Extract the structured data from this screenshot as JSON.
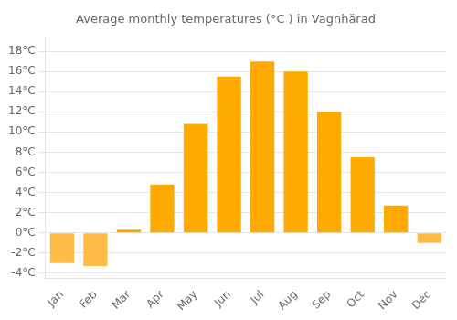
{
  "chart_data": {
    "type": "bar",
    "title": "Average monthly temperatures (°C ) in Vagnhärad",
    "categories": [
      "Jan",
      "Feb",
      "Mar",
      "Apr",
      "May",
      "Jun",
      "Jul",
      "Aug",
      "Sep",
      "Oct",
      "Nov",
      "Dec"
    ],
    "values": [
      -3.0,
      -3.3,
      0.3,
      4.8,
      10.8,
      15.5,
      17.0,
      16.0,
      12.0,
      7.5,
      2.7,
      -1.0
    ],
    "colors": [
      "#FFBB44",
      "#FFBB44",
      "#FFAA00",
      "#FFAA00",
      "#FFAA00",
      "#FFAA00",
      "#FFAA00",
      "#FFAA00",
      "#FFAA00",
      "#FFAA00",
      "#FFAA00",
      "#FFBB44"
    ],
    "ylim": [
      -4.5,
      19.5
    ],
    "yticks": [
      {
        "value": -4,
        "label": "-4°C"
      },
      {
        "value": -2,
        "label": "-2°C"
      },
      {
        "value": 0,
        "label": "0°C"
      },
      {
        "value": 2,
        "label": "2°C"
      },
      {
        "value": 4,
        "label": "4°C"
      },
      {
        "value": 6,
        "label": "6°C"
      },
      {
        "value": 8,
        "label": "8°C"
      },
      {
        "value": 10,
        "label": "10°C"
      },
      {
        "value": 12,
        "label": "12°C"
      },
      {
        "value": 14,
        "label": "14°C"
      },
      {
        "value": 16,
        "label": "16°C"
      },
      {
        "value": 18,
        "label": "18°C"
      }
    ],
    "grid": true
  }
}
